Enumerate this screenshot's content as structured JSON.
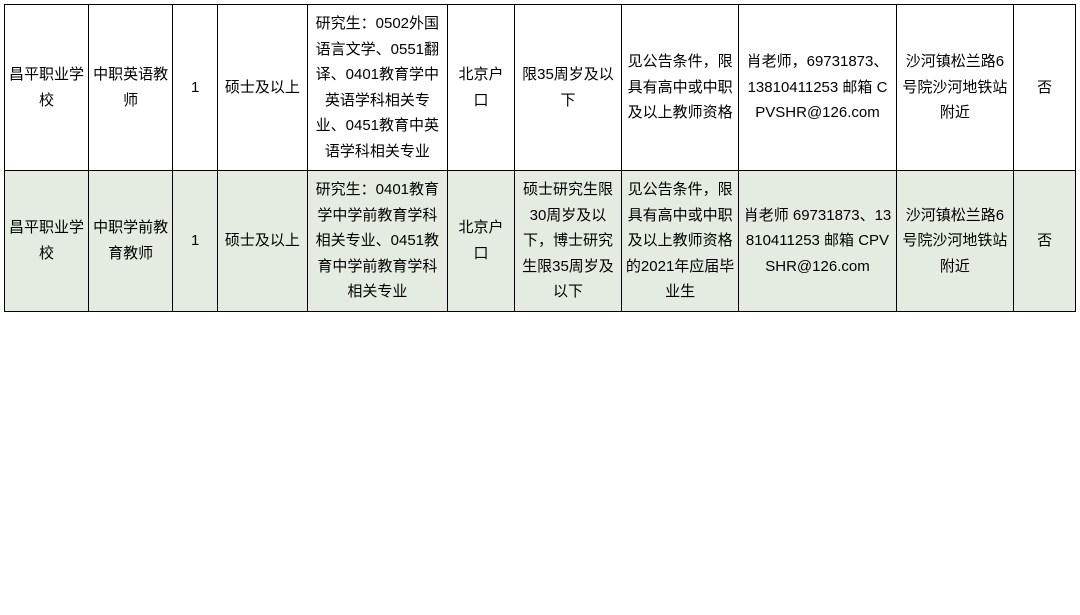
{
  "table": {
    "background_color": "#ffffff",
    "alt_row_background": "#e4ece2",
    "border_color": "#000000",
    "text_color": "#000000",
    "font_size": 15,
    "column_widths_pct": [
      7.5,
      7.5,
      4,
      8,
      12.5,
      6,
      9.5,
      10.5,
      14,
      10.5,
      5.5
    ],
    "rows": [
      {
        "alt": false,
        "cells": [
          "昌平职业学校",
          "中职英语教师",
          "1",
          "硕士及以上",
          "研究生：0502外国语言文学、0551翻译、0401教育学中英语学科相关专业、0451教育中英语学科相关专业",
          "北京户口",
          "限35周岁及以下",
          "见公告条件，限具有高中或中职及以上教师资格",
          "肖老师，69731873、13810411253 邮箱 CPVSHR@126.com",
          "沙河镇松兰路6号院沙河地铁站附近",
          "否"
        ]
      },
      {
        "alt": true,
        "cells": [
          "昌平职业学校",
          "中职学前教育教师",
          "1",
          "硕士及以上",
          "研究生：0401教育学中学前教育学科相关专业、0451教育中学前教育学科相关专业",
          "北京户口",
          "硕士研究生限30周岁及以下，博士研究生限35周岁及以下",
          "见公告条件，限具有高中或中职及以上教师资格的2021年应届毕业生",
          "肖老师 69731873、13810411253 邮箱 CPVSHR@126.com",
          "沙河镇松兰路6号院沙河地铁站附近",
          "否"
        ]
      }
    ]
  }
}
